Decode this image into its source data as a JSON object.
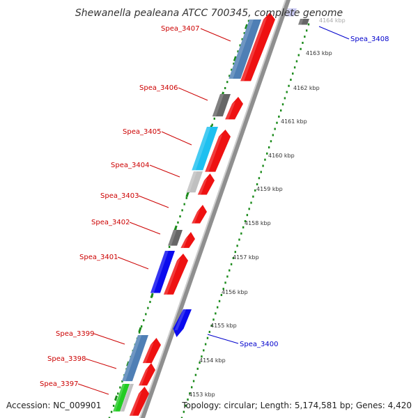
{
  "title": "Shewanella pealeana ATCC 700345, complete genome",
  "footer": {
    "accession": "Accession: NC_009901",
    "summary": "Topology: circular; Length: 5,174,581 bp; Genes: 4,420"
  },
  "axis": {
    "unit": "kbp",
    "ticks": [
      "4153 kbp",
      "4154 kbp",
      "4155 kbp",
      "4156 kbp",
      "4157 kbp",
      "4158 kbp",
      "4159 kbp",
      "4160 kbp",
      "4161 kbp",
      "4162 kbp",
      "4163 kbp",
      "4164 kbp"
    ]
  },
  "labels": [
    {
      "text": "Spea_3407",
      "color": "#cc0000",
      "side": "left"
    },
    {
      "text": "Spea_3406",
      "color": "#cc0000",
      "side": "left"
    },
    {
      "text": "Spea_3405",
      "color": "#cc0000",
      "side": "left"
    },
    {
      "text": "Spea_3404",
      "color": "#cc0000",
      "side": "left"
    },
    {
      "text": "Spea_3403",
      "color": "#cc0000",
      "side": "left"
    },
    {
      "text": "Spea_3402",
      "color": "#cc0000",
      "side": "left"
    },
    {
      "text": "Spea_3401",
      "color": "#cc0000",
      "side": "left"
    },
    {
      "text": "Spea_3399",
      "color": "#cc0000",
      "side": "left"
    },
    {
      "text": "Spea_3398",
      "color": "#cc0000",
      "side": "left"
    },
    {
      "text": "Spea_3397",
      "color": "#cc0000",
      "side": "left"
    },
    {
      "text": "Spea_3408",
      "color": "#0000cc",
      "side": "right"
    },
    {
      "text": "Spea_3400",
      "color": "#0000cc",
      "side": "right"
    }
  ],
  "colors": {
    "backbone": "#8c8c8c",
    "tick_dots": "#1a8a1a",
    "forward_genes": "#ee1111",
    "label_red": "#cc0000",
    "label_blue": "#0000cc",
    "cog_steelblue": "#4f7fb5",
    "cog_cyan": "#1ec0f0",
    "cog_blue": "#0a0aee",
    "cog_gray": "#666666",
    "cog_lightgray": "#c0c0c0",
    "cog_green": "#22cc22",
    "cog_lavender": "#c8c8f0"
  }
}
